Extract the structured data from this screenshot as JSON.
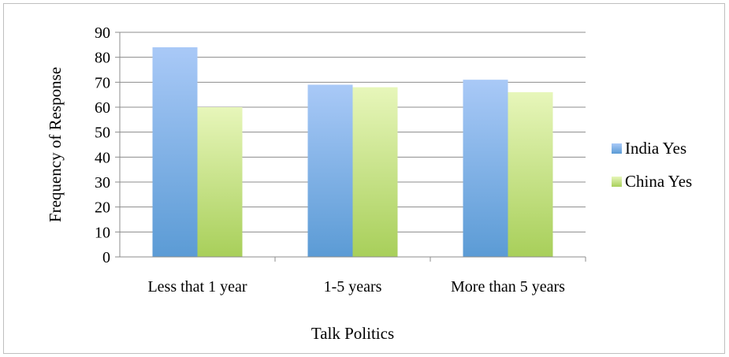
{
  "chart_data": {
    "type": "bar",
    "categories": [
      "Less that 1 year",
      "1-5 years",
      "More than 5 years"
    ],
    "series": [
      {
        "name": "India Yes",
        "values": [
          84,
          69,
          71
        ]
      },
      {
        "name": "China Yes",
        "values": [
          60,
          68,
          66
        ]
      }
    ],
    "xlabel": "Talk Politics",
    "ylabel": "Frequency of Response",
    "ylim": [
      0,
      90
    ],
    "yticks": [
      "0",
      "10",
      "20",
      "30",
      "40",
      "50",
      "60",
      "70",
      "80",
      "90"
    ],
    "grid": true,
    "legend_position": "right",
    "colors": {
      "India Yes": {
        "top": "#a9c9f7",
        "bottom": "#5b9bd5"
      },
      "China Yes": {
        "top": "#e7f6ba",
        "bottom": "#a8cf5a"
      }
    }
  }
}
